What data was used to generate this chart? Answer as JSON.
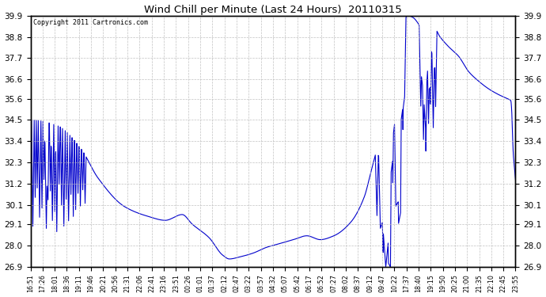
{
  "title": "Wind Chill per Minute (Last 24 Hours)  20110315",
  "copyright": "Copyright 2011 Cartronics.com",
  "line_color": "#0000cc",
  "background_color": "#ffffff",
  "grid_color": "#bbbbbb",
  "ylim": [
    26.9,
    39.9
  ],
  "yticks": [
    26.9,
    28.0,
    29.1,
    30.1,
    31.2,
    32.3,
    33.4,
    34.5,
    35.6,
    36.6,
    37.7,
    38.8,
    39.9
  ],
  "xtick_labels": [
    "16:51",
    "17:26",
    "18:01",
    "18:36",
    "19:11",
    "19:46",
    "20:21",
    "20:56",
    "21:31",
    "22:06",
    "22:41",
    "23:16",
    "23:51",
    "00:26",
    "01:01",
    "01:37",
    "02:12",
    "02:47",
    "03:22",
    "03:57",
    "04:32",
    "05:07",
    "05:42",
    "06:17",
    "06:52",
    "07:27",
    "08:02",
    "08:37",
    "09:12",
    "09:47",
    "10:22",
    "17:37",
    "18:40",
    "19:15",
    "19:50",
    "20:25",
    "21:00",
    "21:35",
    "22:10",
    "22:45",
    "23:55"
  ],
  "figwidth": 6.9,
  "figheight": 3.75,
  "dpi": 100
}
